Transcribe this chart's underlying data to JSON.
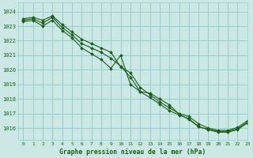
{
  "title": "Graphe pression niveau de la mer (hPa)",
  "bg_color": "#cce8e4",
  "grid_color": "#99cccc",
  "line_color": "#1a5c1a",
  "xlim": [
    -0.5,
    23
  ],
  "ylim": [
    1015.2,
    1024.6
  ],
  "xticks": [
    0,
    1,
    2,
    3,
    4,
    5,
    6,
    7,
    8,
    9,
    10,
    11,
    12,
    13,
    14,
    15,
    16,
    17,
    18,
    19,
    20,
    21,
    22,
    23
  ],
  "yticks": [
    1016,
    1017,
    1018,
    1019,
    1020,
    1021,
    1022,
    1023,
    1024
  ],
  "series": [
    [
      1023.5,
      1023.6,
      1023.4,
      1023.7,
      1023.1,
      1022.6,
      1022.1,
      1021.8,
      1021.5,
      1021.2,
      1020.2,
      1019.8,
      1018.8,
      1018.3,
      1017.8,
      1017.4,
      1017.0,
      1016.8,
      1016.3,
      1016.0,
      1015.85,
      1015.85,
      1016.05,
      1016.5
    ],
    [
      1023.4,
      1023.5,
      1023.2,
      1023.6,
      1022.9,
      1022.4,
      1021.8,
      1021.5,
      1021.2,
      1020.8,
      1020.25,
      1019.5,
      1018.5,
      1018.1,
      1017.65,
      1017.2,
      1016.9,
      1016.65,
      1016.1,
      1015.92,
      1015.78,
      1015.78,
      1015.95,
      1016.4
    ],
    [
      1023.3,
      1023.4,
      1023.0,
      1023.4,
      1022.7,
      1022.2,
      1021.5,
      1021.1,
      1020.7,
      1020.1,
      1021.0,
      1019.0,
      1018.5,
      1018.4,
      1018.0,
      1017.6,
      1016.95,
      1016.6,
      1016.1,
      1015.9,
      1015.72,
      1015.72,
      1015.9,
      1016.35
    ]
  ]
}
